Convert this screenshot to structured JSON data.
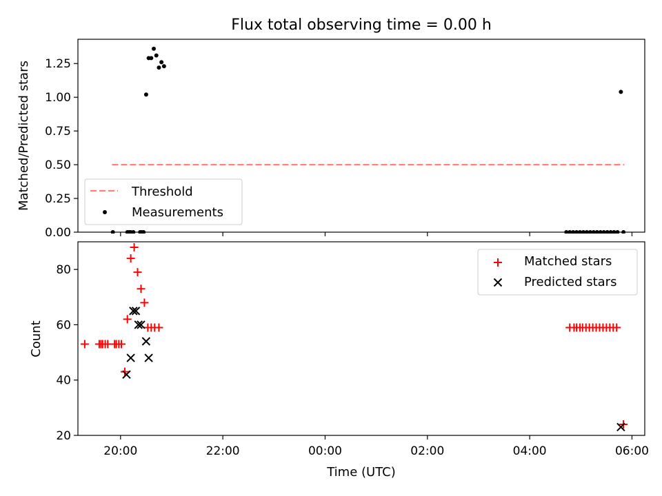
{
  "chart_data": [
    {
      "type": "scatter",
      "title": "Flux total observing time = 0.00 h",
      "xlabel": "",
      "ylabel": "Matched/Predicted stars",
      "xlim": [
        "19:10",
        "06:15"
      ],
      "ylim": [
        0,
        1.43
      ],
      "yticks": [
        "0.00",
        "0.25",
        "0.50",
        "0.75",
        "1.00",
        "1.25"
      ],
      "legend": {
        "position": "lower-left",
        "entries": [
          "Threshold",
          "Measurements"
        ]
      },
      "series": [
        {
          "name": "Threshold",
          "style": "dashed-line",
          "x": [
            "19:50",
            "05:51"
          ],
          "y": [
            0.5,
            0.5
          ]
        },
        {
          "name": "Measurements",
          "style": "dots",
          "x": [
            "19:51",
            "20:08",
            "20:10",
            "20:12",
            "20:15",
            "20:23",
            "20:25",
            "20:27",
            "20:30",
            "20:33",
            "20:36",
            "20:39",
            "20:42",
            "20:45",
            "20:48",
            "04:43",
            "04:47",
            "04:51",
            "04:55",
            "04:59",
            "05:03",
            "05:07",
            "05:11",
            "05:15",
            "05:19",
            "05:23",
            "05:27",
            "05:31",
            "05:35",
            "05:39",
            "05:43",
            "05:47",
            "05:50"
          ],
          "y": [
            0,
            0,
            0,
            0,
            0,
            0,
            0,
            0,
            1.02,
            1.29,
            1.29,
            1.36,
            1.31,
            1.22,
            1.26,
            0,
            0,
            0,
            0,
            0,
            0,
            0,
            0,
            0,
            0,
            0,
            0,
            0,
            0,
            0,
            0,
            1.04,
            0
          ]
        },
        {
          "name": "Measurements",
          "style": "dots",
          "x": [
            "20:51"
          ],
          "y": [
            1.23
          ]
        }
      ]
    },
    {
      "type": "scatter",
      "title": "",
      "xlabel": "Time (UTC)",
      "ylabel": "Count",
      "xlim": [
        "19:10",
        "06:15"
      ],
      "ylim": [
        20,
        90
      ],
      "yticks": [
        "20",
        "40",
        "60",
        "80"
      ],
      "xticks": [
        "20:00",
        "22:00",
        "00:00",
        "02:00",
        "04:00",
        "06:00"
      ],
      "legend": {
        "position": "top-right",
        "entries": [
          "Matched stars",
          "Predicted stars"
        ]
      },
      "series": [
        {
          "name": "Matched stars",
          "color": "#ff0000",
          "marker": "plus",
          "x": [
            "19:18",
            "19:35",
            "19:37",
            "19:39",
            "19:42",
            "19:45",
            "19:53",
            "19:55",
            "19:58",
            "20:01",
            "20:05",
            "20:08",
            "20:12",
            "20:16",
            "20:20",
            "20:24",
            "20:28",
            "20:32",
            "20:36",
            "20:40",
            "20:45",
            "04:47",
            "04:52",
            "04:55",
            "04:59",
            "05:02",
            "05:06",
            "05:10",
            "05:14",
            "05:18",
            "05:22",
            "05:26",
            "05:30",
            "05:34",
            "05:38",
            "05:42",
            "05:50"
          ],
          "y": [
            53,
            53,
            53,
            53,
            53,
            53,
            53,
            53,
            53,
            53,
            43,
            62,
            84,
            88,
            79,
            73,
            68,
            59,
            59,
            59,
            59,
            59,
            59,
            59,
            59,
            59,
            59,
            59,
            59,
            59,
            59,
            59,
            59,
            59,
            59,
            59,
            24
          ]
        },
        {
          "name": "Predicted stars",
          "color": "#000000",
          "marker": "x",
          "x": [
            "20:07",
            "20:12",
            "20:15",
            "20:18",
            "20:21",
            "20:24",
            "20:30",
            "20:33",
            "05:47"
          ],
          "y": [
            42,
            48,
            65,
            65,
            60,
            60,
            54,
            48,
            23
          ]
        }
      ]
    }
  ]
}
